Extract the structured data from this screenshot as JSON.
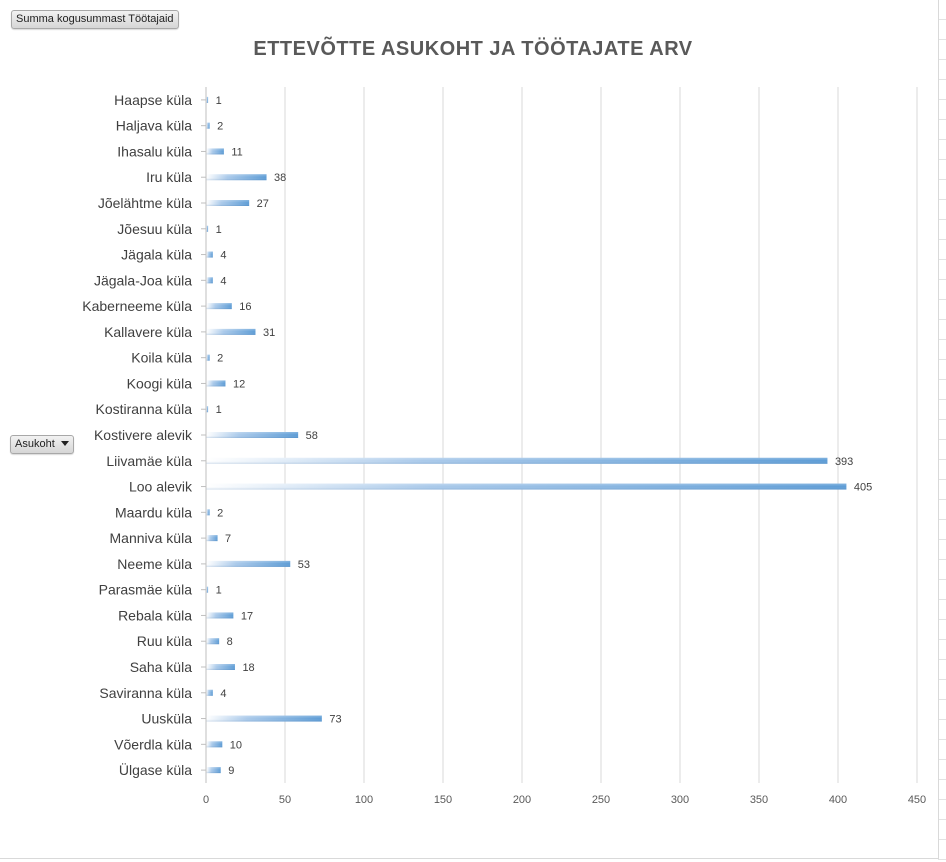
{
  "buttons": {
    "value_field": "Summa kogusummast Töötajaid",
    "axis_field": "Asukoht"
  },
  "chart_data": {
    "type": "bar",
    "orientation": "horizontal",
    "title": "ETTEVÕTTE ASUKOHT JA TÖÖTAJATE ARV",
    "xlim": [
      0,
      450
    ],
    "xticks": [
      0,
      50,
      100,
      150,
      200,
      250,
      300,
      350,
      400,
      450
    ],
    "grid": true,
    "bar_color": "#5b9bd5",
    "categories": [
      "Haapse küla",
      "Haljava küla",
      "Ihasalu küla",
      "Iru küla",
      "Jõelähtme küla",
      "Jõesuu küla",
      "Jägala küla",
      "Jägala-Joa küla",
      "Kaberneeme küla",
      "Kallavere küla",
      "Koila küla",
      "Koogi küla",
      "Kostiranna küla",
      "Kostivere alevik",
      "Liivamäe küla",
      "Loo alevik",
      "Maardu küla",
      "Manniva küla",
      "Neeme küla",
      "Parasmäe küla",
      "Rebala küla",
      "Ruu küla",
      "Saha küla",
      "Saviranna küla",
      "Uusküla",
      "Võerdla küla",
      "Ülgase küla"
    ],
    "values": [
      1,
      2,
      11,
      38,
      27,
      1,
      4,
      4,
      16,
      31,
      2,
      12,
      1,
      58,
      393,
      405,
      2,
      7,
      53,
      1,
      17,
      8,
      18,
      4,
      73,
      10,
      9
    ]
  }
}
